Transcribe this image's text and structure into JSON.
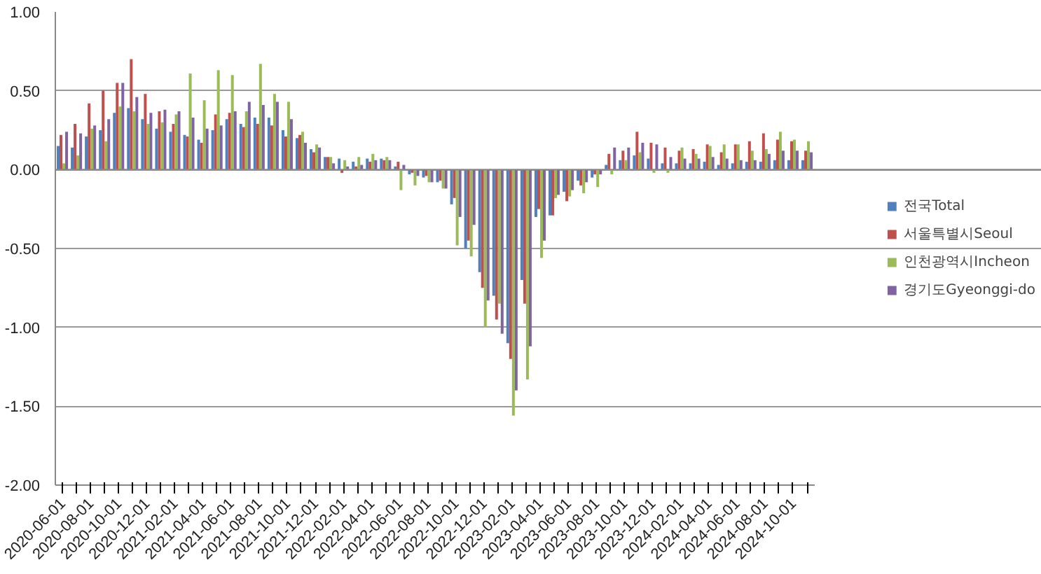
{
  "chart_data": {
    "type": "bar",
    "categories": [
      "2020-06-01",
      null,
      "2020-08-01",
      null,
      "2020-10-01",
      null,
      "2020-12-01",
      null,
      "2021-02-01",
      null,
      "2021-04-01",
      null,
      "2021-06-01",
      null,
      "2021-08-01",
      null,
      "2021-10-01",
      null,
      "2021-12-01",
      null,
      "2022-02-01",
      null,
      "2022-04-01",
      null,
      "2022-06-01",
      null,
      "2022-08-01",
      null,
      "2022-10-01",
      null,
      "2022-12-01",
      null,
      "2023-02-01",
      null,
      "2023-04-01",
      null,
      "2023-06-01",
      null,
      "2023-08-01",
      null,
      "2023-10-01",
      null,
      "2023-12-01",
      null,
      "2024-02-01",
      null,
      "2024-04-01",
      null,
      "2024-06-01",
      null,
      "2024-08-01",
      null,
      "2024-10-01",
      null
    ],
    "series": [
      {
        "name": "전국Total",
        "color": "#4f81bd",
        "values": [
          0.15,
          0.14,
          0.21,
          0.25,
          0.36,
          0.39,
          0.32,
          0.26,
          0.24,
          0.22,
          0.19,
          0.25,
          0.32,
          0.29,
          0.33,
          0.33,
          0.25,
          0.2,
          0.13,
          0.08,
          0.07,
          0.05,
          0.07,
          0.07,
          0.02,
          -0.03,
          -0.05,
          -0.08,
          -0.22,
          -0.5,
          -0.65,
          -0.8,
          -1.1,
          -0.7,
          -0.3,
          -0.29,
          -0.14,
          -0.07,
          -0.05,
          0.03,
          0.06,
          0.09,
          0.07,
          0.04,
          0.04,
          0.04,
          0.05,
          0.03,
          0.04,
          0.05,
          0.05,
          0.06,
          0.06,
          0.06
        ]
      },
      {
        "name": "서울특별시Seoul",
        "color": "#c0504d",
        "values": [
          0.22,
          0.29,
          0.42,
          0.5,
          0.55,
          0.7,
          0.48,
          0.37,
          0.29,
          0.21,
          0.17,
          0.35,
          0.36,
          0.27,
          0.29,
          0.28,
          0.21,
          0.22,
          0.11,
          0.08,
          -0.02,
          0.02,
          0.05,
          0.06,
          0.05,
          -0.02,
          -0.04,
          -0.07,
          -0.18,
          -0.45,
          -0.75,
          -0.95,
          -1.2,
          -0.85,
          -0.25,
          -0.29,
          -0.2,
          -0.1,
          -0.03,
          0.1,
          0.12,
          0.24,
          0.17,
          0.14,
          0.12,
          0.13,
          0.16,
          0.11,
          0.16,
          0.18,
          0.23,
          0.19,
          0.18,
          0.12
        ]
      },
      {
        "name": "인천광역시Incheon",
        "color": "#9bbb59",
        "values": [
          0.04,
          0.09,
          0.26,
          0.18,
          0.4,
          0.37,
          0.29,
          0.3,
          0.35,
          0.61,
          0.44,
          0.63,
          0.6,
          0.37,
          0.67,
          0.48,
          0.43,
          0.24,
          0.16,
          0.08,
          0.06,
          0.08,
          0.1,
          0.08,
          -0.13,
          -0.1,
          -0.08,
          -0.12,
          -0.48,
          -0.55,
          -1.0,
          -0.85,
          -1.56,
          -1.33,
          -0.56,
          -0.18,
          -0.17,
          -0.15,
          -0.11,
          -0.03,
          0.06,
          0.11,
          -0.02,
          -0.02,
          0.14,
          0.1,
          0.15,
          0.16,
          0.16,
          0.12,
          0.13,
          0.24,
          0.19,
          0.18
        ]
      },
      {
        "name": "경기도Gyeonggi-do",
        "color": "#8064a2",
        "values": [
          0.24,
          0.23,
          0.28,
          0.32,
          0.55,
          0.46,
          0.36,
          0.38,
          0.37,
          0.33,
          0.26,
          0.28,
          0.37,
          0.43,
          0.41,
          0.43,
          0.32,
          0.17,
          0.14,
          0.04,
          0.02,
          0.03,
          0.06,
          0.06,
          0.03,
          -0.04,
          -0.08,
          -0.12,
          -0.3,
          -0.35,
          -0.83,
          -1.04,
          -1.4,
          -1.12,
          -0.45,
          -0.16,
          -0.13,
          -0.08,
          -0.03,
          0.14,
          0.14,
          0.17,
          0.16,
          0.08,
          0.07,
          0.07,
          0.08,
          0.07,
          0.06,
          0.06,
          0.1,
          0.12,
          0.12,
          0.11
        ]
      }
    ],
    "ylim": [
      -2,
      1
    ],
    "yticks": [
      {
        "value": 1,
        "label": "1.00"
      },
      {
        "value": 0.5,
        "label": "0.50"
      },
      {
        "value": 0,
        "label": "0.00"
      },
      {
        "value": -0.5,
        "label": "-0.50"
      },
      {
        "value": -1,
        "label": "-1.00"
      },
      {
        "value": -1.5,
        "label": "-1.50"
      },
      {
        "value": -2,
        "label": "-2.00"
      }
    ],
    "grid": "y",
    "legend": "right"
  }
}
